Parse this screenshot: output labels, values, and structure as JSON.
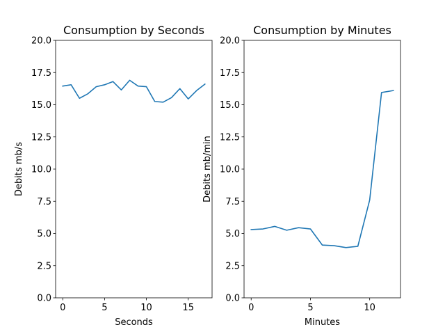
{
  "chart_data": [
    {
      "type": "line",
      "title": "Consumption by Seconds",
      "xlabel": "Seconds",
      "ylabel": "Debits mb/s",
      "xlim": [
        -0.85,
        17.85
      ],
      "ylim": [
        0,
        20
      ],
      "xticks": [
        0,
        5,
        10,
        15
      ],
      "yticks": [
        0.0,
        2.5,
        5.0,
        7.5,
        10.0,
        12.5,
        15.0,
        17.5,
        20.0
      ],
      "ytick_labels": [
        "0.0",
        "2.5",
        "5.0",
        "7.5",
        "10.0",
        "12.5",
        "15.0",
        "17.5",
        "20.0"
      ],
      "grid": false,
      "color": "#1f77b4",
      "x": [
        0,
        1,
        2,
        3,
        4,
        5,
        6,
        7,
        8,
        9,
        10,
        11,
        12,
        13,
        14,
        15,
        16,
        17
      ],
      "values": [
        16.45,
        16.55,
        15.5,
        15.85,
        16.4,
        16.55,
        16.8,
        16.15,
        16.9,
        16.45,
        16.4,
        15.25,
        15.2,
        15.55,
        16.25,
        15.45,
        16.1,
        16.6
      ]
    },
    {
      "type": "line",
      "title": "Consumption by Minutes",
      "xlabel": "Minutes",
      "ylabel": "Debits mb/min",
      "xlim": [
        -0.6,
        12.6
      ],
      "ylim": [
        0,
        20
      ],
      "xticks": [
        0,
        5,
        10
      ],
      "yticks": [
        0.0,
        2.5,
        5.0,
        7.5,
        10.0,
        12.5,
        15.0,
        17.5,
        20.0
      ],
      "ytick_labels": [
        "0.0",
        "2.5",
        "5.0",
        "7.5",
        "10.0",
        "12.5",
        "15.0",
        "17.5",
        "20.0"
      ],
      "grid": false,
      "color": "#1f77b4",
      "x": [
        0,
        1,
        2,
        3,
        4,
        5,
        6,
        7,
        8,
        9,
        10,
        11,
        12
      ],
      "values": [
        5.3,
        5.35,
        5.55,
        5.25,
        5.45,
        5.35,
        4.1,
        4.05,
        3.9,
        4.0,
        7.6,
        15.95,
        16.1
      ]
    }
  ]
}
